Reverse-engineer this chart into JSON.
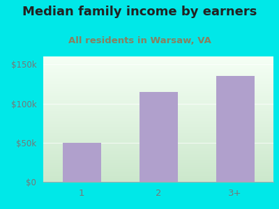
{
  "title": "Median family income by earners",
  "subtitle": "All residents in Warsaw, VA",
  "categories": [
    "1",
    "2",
    "3+"
  ],
  "values": [
    50000,
    115000,
    135000
  ],
  "bar_color": "#b0a0cc",
  "outer_bg": "#00e8e8",
  "grad_top_left": "#d4ecd4",
  "grad_bottom_right": "#f8fff8",
  "title_color": "#222222",
  "subtitle_color": "#888060",
  "tick_label_color": "#777777",
  "yticks": [
    0,
    50000,
    100000,
    150000
  ],
  "ytick_labels": [
    "$0",
    "$50k",
    "$100k",
    "$150k"
  ],
  "ylim": [
    0,
    160000
  ],
  "title_fontsize": 13,
  "subtitle_fontsize": 9.5,
  "bar_width": 0.5
}
